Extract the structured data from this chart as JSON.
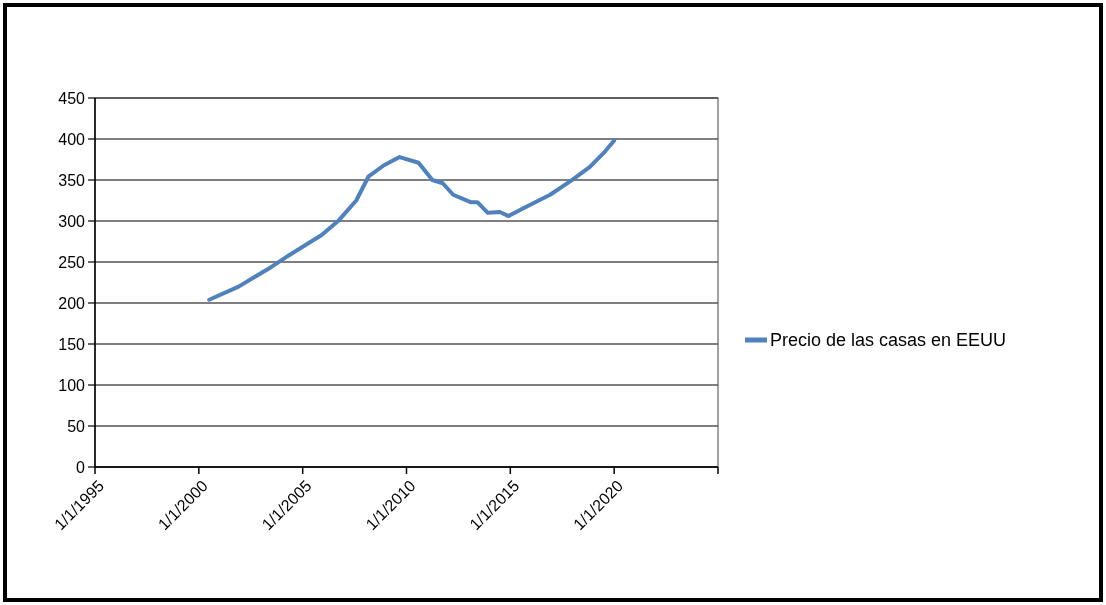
{
  "chart_data": {
    "type": "line",
    "x": [
      "2000-07",
      "2001-12",
      "2003-07",
      "2004-05",
      "2005-12",
      "2006-10",
      "2007-08",
      "2008-03",
      "2008-12",
      "2009-09",
      "2010-08",
      "2011-04",
      "2011-10",
      "2012-04",
      "2013-02",
      "2013-06",
      "2013-12",
      "2014-07",
      "2014-12",
      "2015-10",
      "2016-12",
      "2017-12",
      "2018-11",
      "2019-07",
      "2020-01"
    ],
    "series": [
      {
        "name": "Precio de las casas en EEUU",
        "color": "#4f81bd",
        "values": [
          204,
          220,
          244,
          258,
          283,
          301,
          325,
          354,
          368,
          378,
          371,
          350,
          346,
          332,
          323,
          323,
          310,
          311,
          306,
          317,
          332,
          349,
          366,
          383,
          398
        ]
      }
    ],
    "xlim": [
      "1995-01-01",
      "2025-01-01"
    ],
    "xticks": [
      {
        "value": "1995-01-01",
        "label": "1/1/1995"
      },
      {
        "value": "2000-01-01",
        "label": "1/1/2000"
      },
      {
        "value": "2005-01-01",
        "label": "1/1/2005"
      },
      {
        "value": "2010-01-01",
        "label": "1/1/2010"
      },
      {
        "value": "2015-01-01",
        "label": "1/1/2015"
      },
      {
        "value": "2020-01-01",
        "label": "1/1/2020"
      },
      {
        "value": "2025-01-01",
        "label": null
      }
    ],
    "ylim": [
      0,
      450
    ],
    "yticks": [
      0,
      50,
      100,
      150,
      200,
      250,
      300,
      350,
      400,
      450
    ],
    "grid": "y",
    "legend": "right",
    "marker": "none",
    "line_style": "solid"
  }
}
